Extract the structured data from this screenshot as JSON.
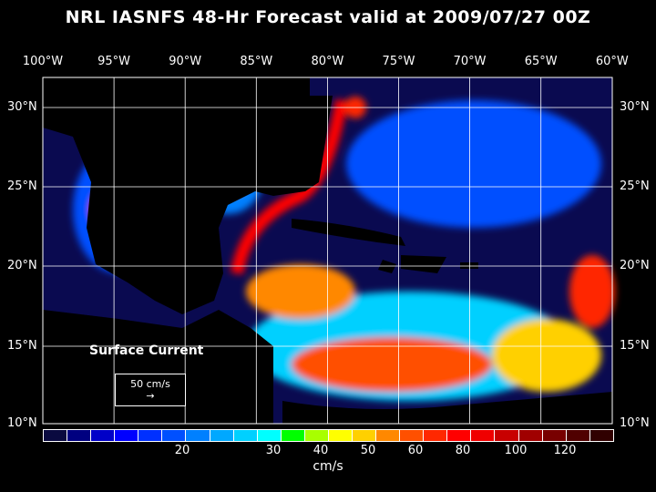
{
  "title": "NRL IASNFS  48-Hr Forecast valid at 2009/07/27 00Z",
  "lon_labels": [
    "100°W",
    "95°W",
    "90°W",
    "85°W",
    "80°W",
    "75°W",
    "70°W",
    "65°W",
    "60°W"
  ],
  "lat_labels": [
    "30°N",
    "25°N",
    "20°N",
    "15°N",
    "10°N"
  ],
  "legend": {
    "title": "Surface Current",
    "scale_label": "50 cm/s"
  },
  "colorbar": {
    "unit": "cm/s",
    "ticks": [
      "20",
      "30",
      "40",
      "50",
      "60",
      "80",
      "100",
      "120"
    ],
    "colors": [
      "#0a0a40",
      "#000080",
      "#0000c8",
      "#0000ff",
      "#0030ff",
      "#0050ff",
      "#0080ff",
      "#00a8ff",
      "#00d0ff",
      "#00ffff",
      "#00ff00",
      "#a8ff00",
      "#ffff00",
      "#ffd000",
      "#ff8800",
      "#ff5000",
      "#ff2800",
      "#ff0000",
      "#f00000",
      "#c80000",
      "#a00000",
      "#780000",
      "#500000",
      "#300000"
    ]
  }
}
